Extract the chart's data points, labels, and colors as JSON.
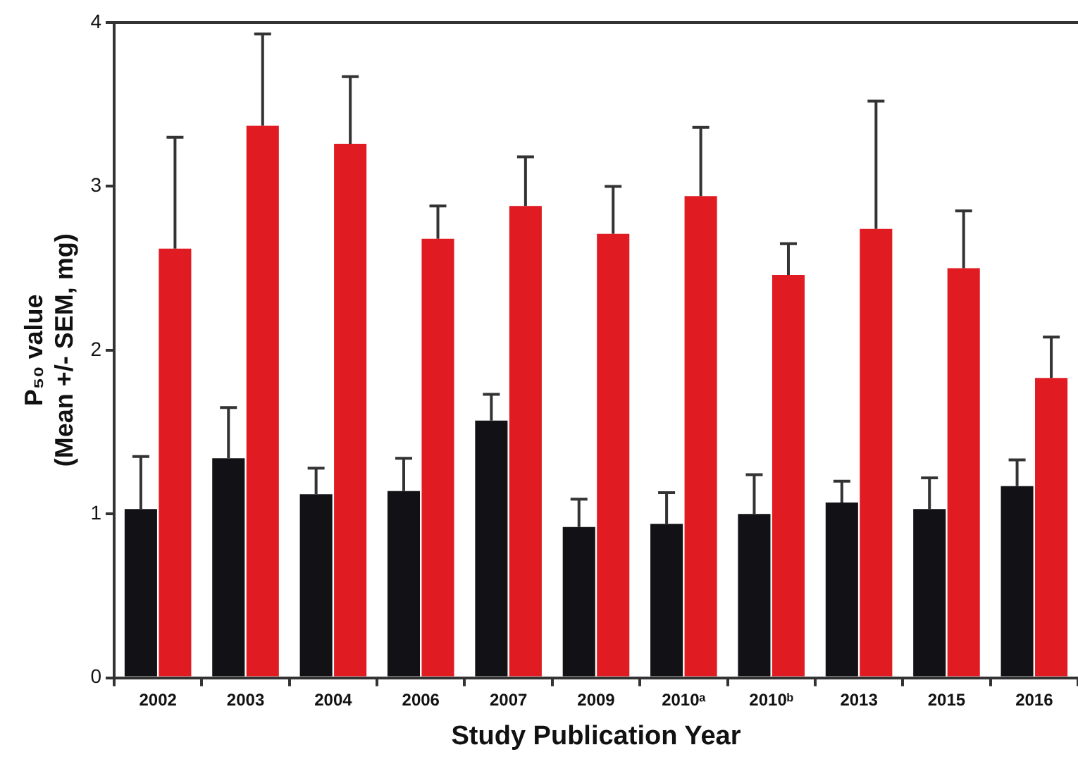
{
  "chart_data": {
    "type": "bar",
    "xlabel": "Study Publication Year",
    "ylabel": "P₅₀ value\n(Mean +/- SEM, mg)",
    "categories": [
      "2002",
      "2003",
      "2004",
      "2006",
      "2007",
      "2009",
      "2010ᵃ",
      "2010ᵇ",
      "2013",
      "2015",
      "2016"
    ],
    "series": [
      {
        "color": "#111116",
        "values": [
          1.03,
          1.34,
          1.12,
          1.14,
          1.57,
          0.92,
          0.94,
          1.0,
          1.07,
          1.03,
          1.17
        ],
        "errors": [
          [
            1.03,
            1.35
          ],
          [
            1.34,
            1.65
          ],
          [
            1.12,
            1.28
          ],
          [
            1.14,
            1.34
          ],
          [
            1.57,
            1.73
          ],
          [
            0.92,
            1.09
          ],
          [
            0.94,
            1.13
          ],
          [
            1.0,
            1.24
          ],
          [
            1.07,
            1.2
          ],
          [
            1.03,
            1.22
          ],
          [
            1.17,
            1.33
          ]
        ]
      },
      {
        "color": "#e01b22",
        "values": [
          2.62,
          3.37,
          3.26,
          2.68,
          2.88,
          2.71,
          2.94,
          2.46,
          2.74,
          2.5,
          1.83
        ],
        "errors": [
          [
            2.62,
            3.3
          ],
          [
            3.37,
            3.93
          ],
          [
            3.26,
            3.67
          ],
          [
            2.68,
            2.88
          ],
          [
            2.88,
            3.18
          ],
          [
            2.71,
            3.0
          ],
          [
            2.94,
            3.36
          ],
          [
            2.46,
            2.65
          ],
          [
            2.74,
            3.52
          ],
          [
            2.5,
            2.85
          ],
          [
            1.83,
            2.08
          ]
        ]
      }
    ],
    "ylim": [
      0,
      4
    ],
    "yticks": [
      0,
      1,
      2,
      3,
      4
    ],
    "grid": false,
    "legend": false
  }
}
